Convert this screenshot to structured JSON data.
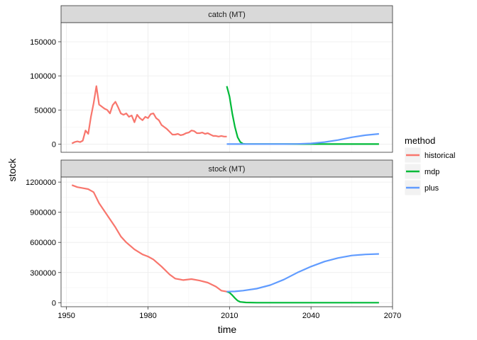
{
  "chart_data": {
    "type": "line",
    "xlabel": "time",
    "ylabel": "stock",
    "x_ticks": [
      1950,
      1980,
      2010,
      2040,
      2070
    ],
    "xlim": [
      1948,
      2070
    ],
    "grid": true,
    "legend": {
      "title": "method",
      "position": "right",
      "entries": [
        {
          "name": "historical",
          "color": "#F8766D"
        },
        {
          "name": "mdp",
          "color": "#00BA38"
        },
        {
          "name": "plus",
          "color": "#619CFF"
        }
      ]
    },
    "panels": [
      {
        "strip": "catch (MT)",
        "ylim": [
          -12000,
          178000
        ],
        "y_ticks": [
          0,
          50000,
          100000,
          150000
        ],
        "y_tick_labels": [
          "0",
          "50000",
          "100000",
          "150000"
        ],
        "series": [
          {
            "name": "historical",
            "color": "#F8766D",
            "x": [
              1952,
              1953,
              1954,
              1955,
              1956,
              1957,
              1958,
              1959,
              1960,
              1961,
              1962,
              1963,
              1964,
              1965,
              1966,
              1967,
              1968,
              1969,
              1970,
              1971,
              1972,
              1973,
              1974,
              1975,
              1976,
              1977,
              1978,
              1979,
              1980,
              1981,
              1982,
              1983,
              1984,
              1985,
              1986,
              1987,
              1988,
              1989,
              1990,
              1991,
              1992,
              1993,
              1994,
              1995,
              1996,
              1997,
              1998,
              1999,
              2000,
              2001,
              2002,
              2003,
              2004,
              2005,
              2006,
              2007,
              2008,
              2009
            ],
            "values": [
              1000,
              3000,
              4000,
              3000,
              5000,
              20000,
              15000,
              40000,
              60000,
              85000,
              58000,
              55000,
              52000,
              50000,
              45000,
              57000,
              62000,
              54000,
              45000,
              43000,
              45000,
              40000,
              42000,
              32000,
              43000,
              38000,
              35000,
              40000,
              38000,
              44000,
              45000,
              38000,
              35000,
              28000,
              25000,
              22000,
              18000,
              14000,
              14000,
              15000,
              13000,
              14000,
              16000,
              17000,
              20000,
              19000,
              16000,
              16000,
              17000,
              15000,
              16000,
              14000,
              12000,
              12000,
              11000,
              12000,
              11000,
              11000
            ]
          },
          {
            "name": "mdp",
            "color": "#00BA38",
            "x": [
              2009,
              2010,
              2011,
              2012,
              2013,
              2014,
              2015,
              2016,
              2017,
              2018,
              2019,
              2020,
              2025,
              2030,
              2035,
              2040,
              2045,
              2050,
              2055,
              2060,
              2065
            ],
            "values": [
              85000,
              70000,
              45000,
              25000,
              10000,
              3000,
              500,
              0,
              0,
              0,
              0,
              0,
              0,
              0,
              0,
              0,
              0,
              0,
              0,
              0,
              0
            ]
          },
          {
            "name": "plus",
            "color": "#619CFF",
            "x": [
              2009,
              2010,
              2011,
              2012,
              2015,
              2020,
              2025,
              2030,
              2035,
              2040,
              2045,
              2050,
              2055,
              2060,
              2065
            ],
            "values": [
              0,
              0,
              0,
              0,
              0,
              0,
              0,
              0,
              200,
              1000,
              3000,
              6000,
              10000,
              13000,
              15000
            ]
          }
        ]
      },
      {
        "strip": "stock (MT)",
        "ylim": [
          -40000,
          1250000
        ],
        "y_ticks": [
          0,
          300000,
          600000,
          900000,
          1200000
        ],
        "y_tick_labels": [
          "0",
          "300000",
          "600000",
          "900000",
          "1200000"
        ],
        "series": [
          {
            "name": "historical",
            "color": "#F8766D",
            "x": [
              1952,
              1954,
              1956,
              1958,
              1960,
              1962,
              1965,
              1968,
              1970,
              1972,
              1975,
              1978,
              1980,
              1982,
              1985,
              1988,
              1990,
              1993,
              1996,
              1999,
              2002,
              2005,
              2007,
              2009
            ],
            "values": [
              1170000,
              1150000,
              1140000,
              1130000,
              1100000,
              990000,
              870000,
              750000,
              660000,
              600000,
              530000,
              480000,
              460000,
              430000,
              360000,
              280000,
              240000,
              225000,
              235000,
              220000,
              200000,
              160000,
              120000,
              110000
            ]
          },
          {
            "name": "mdp",
            "color": "#00BA38",
            "x": [
              2009,
              2010,
              2011,
              2012,
              2013,
              2014,
              2016,
              2020,
              2030,
              2040,
              2050,
              2065
            ],
            "values": [
              110000,
              100000,
              75000,
              45000,
              20000,
              8000,
              2000,
              0,
              0,
              0,
              0,
              0
            ]
          },
          {
            "name": "plus",
            "color": "#619CFF",
            "x": [
              2009,
              2012,
              2015,
              2020,
              2025,
              2030,
              2035,
              2040,
              2045,
              2050,
              2055,
              2060,
              2065
            ],
            "values": [
              110000,
              112000,
              120000,
              140000,
              175000,
              230000,
              300000,
              360000,
              410000,
              445000,
              470000,
              480000,
              485000
            ]
          }
        ]
      }
    ]
  }
}
